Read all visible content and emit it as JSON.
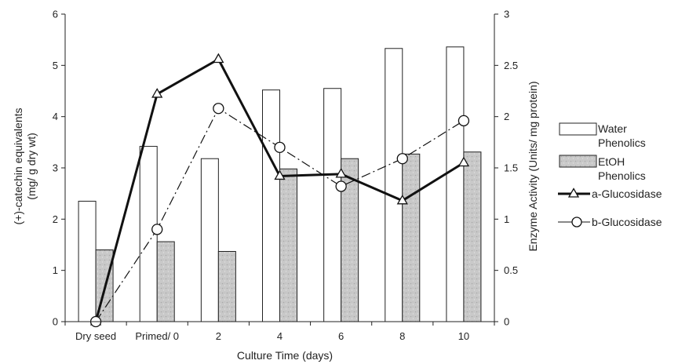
{
  "chart_data": {
    "type": "bar",
    "categories": [
      "Dry seed",
      "Primed/ 0",
      "2",
      "4",
      "6",
      "8",
      "10"
    ],
    "xlabel": "Culture Time (days)",
    "ylabel_left_lines": [
      "(+)-catechin equivalents",
      "(mg/ g dry wt)"
    ],
    "ylabel_right": "Enzyme Activity (Units/ mg protein)",
    "ylim_left": [
      0,
      6
    ],
    "yticks_left": [
      0,
      1,
      2,
      3,
      4,
      5,
      6
    ],
    "ylim_right": [
      0,
      3
    ],
    "yticks_right": [
      "0",
      "0.5",
      "1",
      "1.5",
      "2",
      "2.5",
      "3"
    ],
    "grid": false,
    "legend_position": "right",
    "bar_series": [
      {
        "name_lines": [
          "Water",
          "Phenolics"
        ],
        "axis": "left",
        "style": "white",
        "values": [
          2.35,
          3.42,
          3.18,
          4.52,
          4.55,
          5.33,
          5.36
        ]
      },
      {
        "name_lines": [
          "EtOH",
          "Phenolics"
        ],
        "axis": "left",
        "style": "gray-textured",
        "values": [
          1.4,
          1.56,
          1.37,
          2.98,
          3.18,
          3.27,
          3.31
        ]
      }
    ],
    "line_series": [
      {
        "name": "a-Glucosidase",
        "axis": "right",
        "marker": "triangle",
        "line": "solid",
        "values": [
          0.0,
          2.22,
          2.56,
          1.42,
          1.44,
          1.18,
          1.55
        ]
      },
      {
        "name": "b-Glucosidase",
        "axis": "right",
        "marker": "circle",
        "line": "dash-dot",
        "values": [
          0.0,
          0.9,
          2.08,
          1.7,
          1.32,
          1.59,
          1.96
        ]
      }
    ]
  }
}
